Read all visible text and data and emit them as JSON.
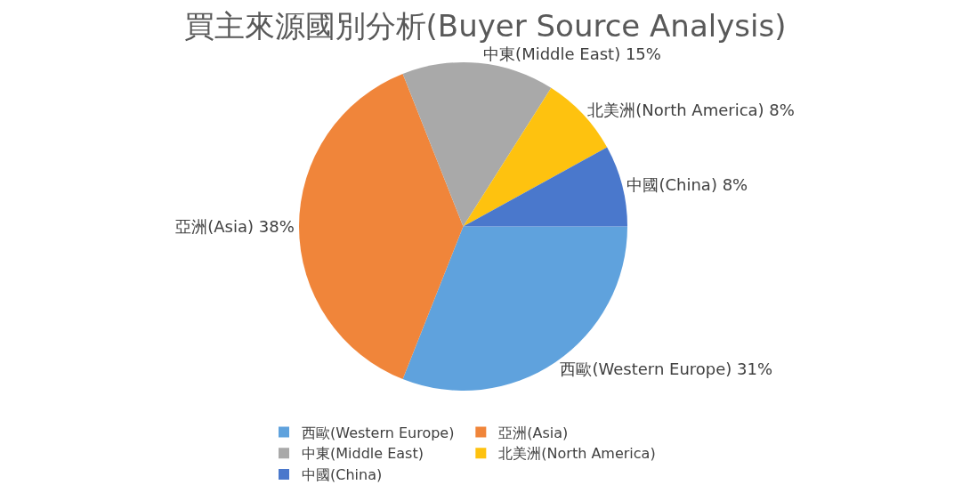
{
  "chart_data": {
    "type": "pie",
    "title": "買主來源國別分析(Buyer Source Analysis)",
    "categories": [
      "西歐(Western Europe)",
      "亞洲(Asia)",
      "中東(Middle East)",
      "北美洲(North America)",
      "中國(China)"
    ],
    "values": [
      31,
      38,
      15,
      8,
      8
    ],
    "value_labels": [
      "31%",
      "38%",
      "15%",
      "8%",
      "8%"
    ],
    "colors": [
      "#5fa2dd",
      "#f0853a",
      "#a9a9a9",
      "#fec20f",
      "#4a78cc"
    ],
    "legend": "bottom"
  }
}
